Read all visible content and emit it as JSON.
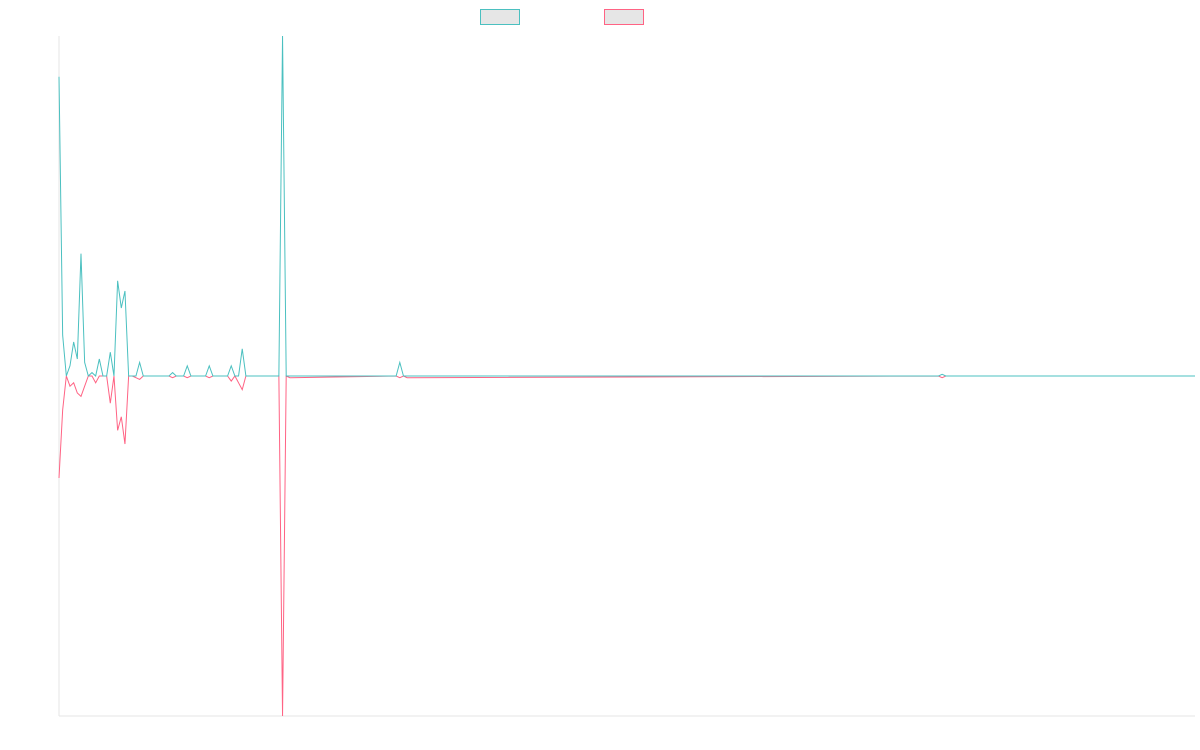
{
  "chart_data": {
    "type": "line",
    "title": "",
    "xlabel": "",
    "ylabel": "",
    "x_range": [
      0,
      310
    ],
    "ylim": [
      -1,
      1
    ],
    "grid": false,
    "legend_position": "top-center",
    "series": [
      {
        "color": "#4bc0c0",
        "points": [
          [
            0,
            0.88
          ],
          [
            1,
            0.12
          ],
          [
            2,
            0.0
          ],
          [
            3,
            0.03
          ],
          [
            4,
            0.1
          ],
          [
            5,
            0.05
          ],
          [
            6,
            0.36
          ],
          [
            7,
            0.04
          ],
          [
            8,
            0.0
          ],
          [
            9,
            0.01
          ],
          [
            10,
            0.0
          ],
          [
            11,
            0.05
          ],
          [
            12,
            0.0
          ],
          [
            13,
            0.0
          ],
          [
            14,
            0.07
          ],
          [
            15,
            0.0
          ],
          [
            16,
            0.28
          ],
          [
            17,
            0.2
          ],
          [
            18,
            0.25
          ],
          [
            19,
            0.0
          ],
          [
            20,
            0.0
          ],
          [
            21,
            0.0
          ],
          [
            22,
            0.04
          ],
          [
            23,
            0.0
          ],
          [
            30,
            0.0
          ],
          [
            31,
            0.01
          ],
          [
            32,
            0.0
          ],
          [
            34,
            0.0
          ],
          [
            35,
            0.03
          ],
          [
            36,
            0.0
          ],
          [
            40,
            0.0
          ],
          [
            41,
            0.03
          ],
          [
            42,
            0.0
          ],
          [
            46,
            0.0
          ],
          [
            47,
            0.03
          ],
          [
            48,
            0.0
          ],
          [
            49,
            0.0
          ],
          [
            50,
            0.08
          ],
          [
            51,
            0.0
          ],
          [
            53,
            0.0
          ],
          [
            54,
            0.0
          ],
          [
            60,
            0.0
          ],
          [
            61,
            1.0
          ],
          [
            62,
            0.0
          ],
          [
            63,
            0.0
          ],
          [
            92,
            0.0
          ],
          [
            93,
            0.04
          ],
          [
            94,
            0.0
          ],
          [
            95,
            0.0
          ],
          [
            240,
            0.0
          ],
          [
            241,
            0.005
          ],
          [
            242,
            0.0
          ],
          [
            310,
            0.0
          ]
        ]
      },
      {
        "color": "#ff6384",
        "points": [
          [
            0,
            -0.3
          ],
          [
            1,
            -0.1
          ],
          [
            2,
            0.0
          ],
          [
            3,
            -0.03
          ],
          [
            4,
            -0.02
          ],
          [
            5,
            -0.05
          ],
          [
            6,
            -0.06
          ],
          [
            7,
            -0.03
          ],
          [
            8,
            0.0
          ],
          [
            9,
            0.0
          ],
          [
            10,
            -0.02
          ],
          [
            11,
            0.0
          ],
          [
            12,
            0.0
          ],
          [
            13,
            0.0
          ],
          [
            14,
            -0.08
          ],
          [
            15,
            0.0
          ],
          [
            16,
            -0.16
          ],
          [
            17,
            -0.12
          ],
          [
            18,
            -0.2
          ],
          [
            19,
            0.0
          ],
          [
            20,
            0.0
          ],
          [
            21,
            -0.005
          ],
          [
            22,
            -0.01
          ],
          [
            23,
            0.0
          ],
          [
            30,
            0.0
          ],
          [
            31,
            -0.005
          ],
          [
            32,
            0.0
          ],
          [
            34,
            0.0
          ],
          [
            35,
            -0.005
          ],
          [
            36,
            0.0
          ],
          [
            40,
            0.0
          ],
          [
            41,
            -0.005
          ],
          [
            42,
            0.0
          ],
          [
            46,
            0.0
          ],
          [
            47,
            -0.015
          ],
          [
            48,
            0.0
          ],
          [
            49,
            -0.02
          ],
          [
            50,
            -0.04
          ],
          [
            51,
            0.0
          ],
          [
            53,
            0.0
          ],
          [
            54,
            0.0
          ],
          [
            60,
            0.0
          ],
          [
            61,
            -1.0
          ],
          [
            62,
            0.0
          ],
          [
            63,
            -0.005
          ],
          [
            92,
            0.0
          ],
          [
            93,
            -0.005
          ],
          [
            94,
            0.0
          ],
          [
            95,
            -0.005
          ],
          [
            240,
            0.0
          ],
          [
            241,
            -0.005
          ],
          [
            242,
            0.0
          ],
          [
            310,
            0.0
          ]
        ]
      }
    ]
  }
}
